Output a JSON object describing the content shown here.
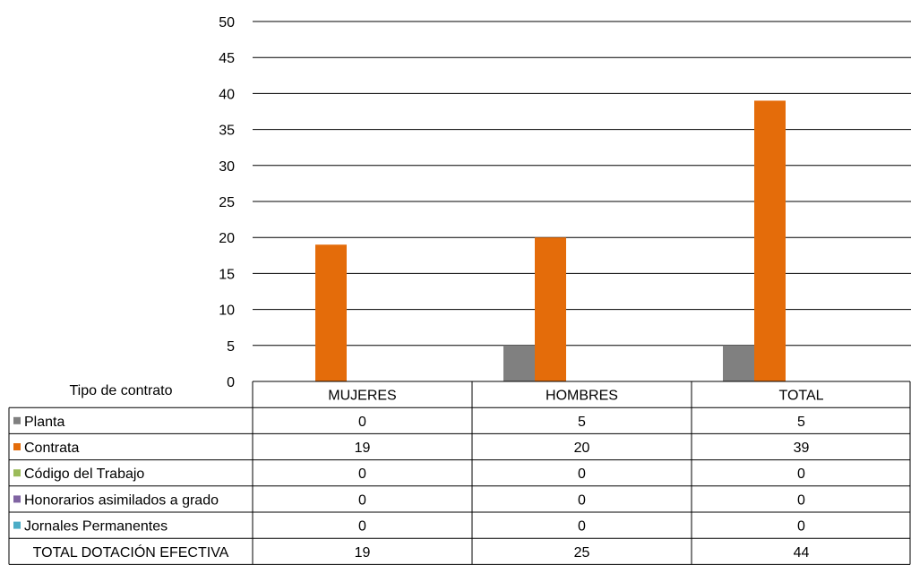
{
  "chart_data": {
    "type": "bar",
    "categories": [
      "MUJERES",
      "HOMBRES",
      "TOTAL"
    ],
    "series": [
      {
        "name": "Planta",
        "color": "#808080",
        "values": [
          0,
          5,
          5
        ]
      },
      {
        "name": "Contrata",
        "color": "#E46C0A",
        "values": [
          19,
          20,
          39
        ]
      },
      {
        "name": "Código del Trabajo",
        "color": "#9BBB59",
        "values": [
          0,
          0,
          0
        ]
      },
      {
        "name": "Honorarios asimilados a grado",
        "color": "#8064A2",
        "values": [
          0,
          0,
          0
        ]
      },
      {
        "name": "Jornales Permanentes",
        "color": "#4BACC6",
        "values": [
          0,
          0,
          0
        ]
      }
    ],
    "ylim": [
      0,
      50
    ],
    "yticks": [
      0,
      5,
      10,
      15,
      20,
      25,
      30,
      35,
      40,
      45,
      50
    ],
    "grid": true,
    "legend": "data-table",
    "table_header_label": "Tipo de contrato",
    "total_row": {
      "label": "TOTAL DOTACIÓN EFECTIVA",
      "values": [
        19,
        25,
        44
      ]
    }
  }
}
